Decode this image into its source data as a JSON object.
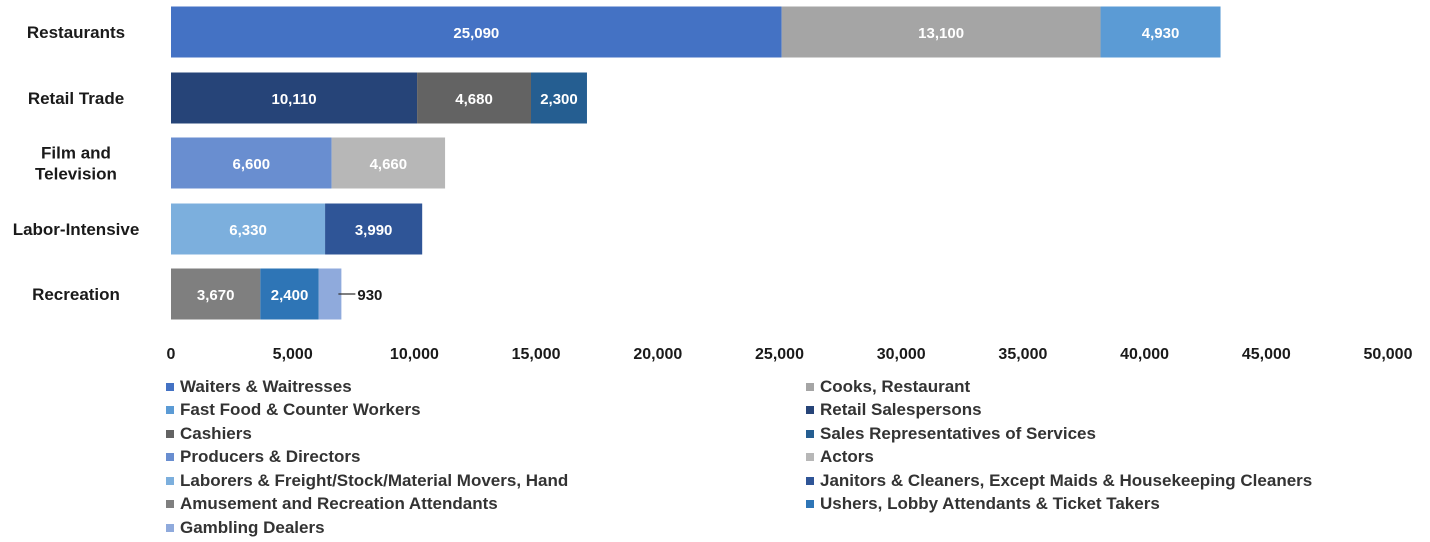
{
  "chart_data": {
    "type": "bar",
    "orientation": "horizontal",
    "stacked": true,
    "categories": [
      "Restaurants",
      "Retail Trade",
      "Film and Television",
      "Labor-Intensive",
      "Recreation"
    ],
    "category_lines": [
      [
        "Restaurants"
      ],
      [
        "Retail Trade"
      ],
      [
        "Film and",
        "Television"
      ],
      [
        "Labor-Intensive"
      ],
      [
        "Recreation"
      ]
    ],
    "xlim": [
      0,
      50000
    ],
    "xticks": [
      0,
      5000,
      10000,
      15000,
      20000,
      25000,
      30000,
      35000,
      40000,
      45000,
      50000
    ],
    "xtick_labels": [
      "0",
      "5,000",
      "10,000",
      "15,000",
      "20,000",
      "25,000",
      "30,000",
      "35,000",
      "40,000",
      "45,000",
      "50,000"
    ],
    "grid": false,
    "legend_position": "bottom",
    "stacks": [
      [
        {
          "series": "Waiters & Waitresses",
          "value": 25090,
          "label": "25,090",
          "color": "#4472C4"
        },
        {
          "series": "Cooks, Restaurant",
          "value": 13100,
          "label": "13,100",
          "color": "#A5A5A5"
        },
        {
          "series": "Fast Food  & Counter Workers",
          "value": 4930,
          "label": "4,930",
          "color": "#5B9BD5"
        }
      ],
      [
        {
          "series": "Retail Salespersons",
          "value": 10110,
          "label": "10,110",
          "color": "#264478"
        },
        {
          "series": "Cashiers",
          "value": 4680,
          "label": "4,680",
          "color": "#636363"
        },
        {
          "series": "Sales Representatives of Services",
          "value": 2300,
          "label": "2,300",
          "color": "#255E91"
        }
      ],
      [
        {
          "series": "Producers & Directors",
          "value": 6600,
          "label": "6,600",
          "color": "#698ED0"
        },
        {
          "series": "Actors",
          "value": 4660,
          "label": "4,660",
          "color": "#B7B7B7"
        }
      ],
      [
        {
          "series": "Laborers & Freight/Stock/Material Movers, Hand",
          "value": 6330,
          "label": "6,330",
          "color": "#7CAFDD"
        },
        {
          "series": "Janitors & Cleaners, Except Maids & Housekeeping Cleaners",
          "value": 3990,
          "label": "3,990",
          "color": "#2F5597"
        }
      ],
      [
        {
          "series": "Amusement and Recreation Attendants",
          "value": 3670,
          "label": "3,670",
          "color": "#7F7F7F"
        },
        {
          "series": "Ushers, Lobby Attendants & Ticket Takers",
          "value": 2400,
          "label": "2,400",
          "color": "#2E75B6"
        },
        {
          "series": "Gambling Dealers",
          "value": 930,
          "label": "930",
          "color": "#8FAADC",
          "label_outside": true
        }
      ]
    ],
    "legend": [
      {
        "name": "Waiters & Waitresses",
        "color": "#4472C4"
      },
      {
        "name": "Cooks, Restaurant",
        "color": "#A5A5A5"
      },
      {
        "name": "Fast Food  & Counter Workers",
        "color": "#5B9BD5"
      },
      {
        "name": "Retail Salespersons",
        "color": "#264478"
      },
      {
        "name": "Cashiers",
        "color": "#636363"
      },
      {
        "name": "Sales Representatives of Services",
        "color": "#255E91"
      },
      {
        "name": "Producers & Directors",
        "color": "#698ED0"
      },
      {
        "name": "Actors",
        "color": "#B7B7B7"
      },
      {
        "name": "Laborers & Freight/Stock/Material Movers, Hand",
        "color": "#7CAFDD"
      },
      {
        "name": "Janitors & Cleaners, Except Maids & Housekeeping Cleaners",
        "color": "#2F5597"
      },
      {
        "name": "Amusement and Recreation Attendants",
        "color": "#7F7F7F"
      },
      {
        "name": "Ushers, Lobby Attendants & Ticket Takers",
        "color": "#2E75B6"
      },
      {
        "name": "Gambling Dealers",
        "color": "#8FAADC"
      }
    ]
  }
}
